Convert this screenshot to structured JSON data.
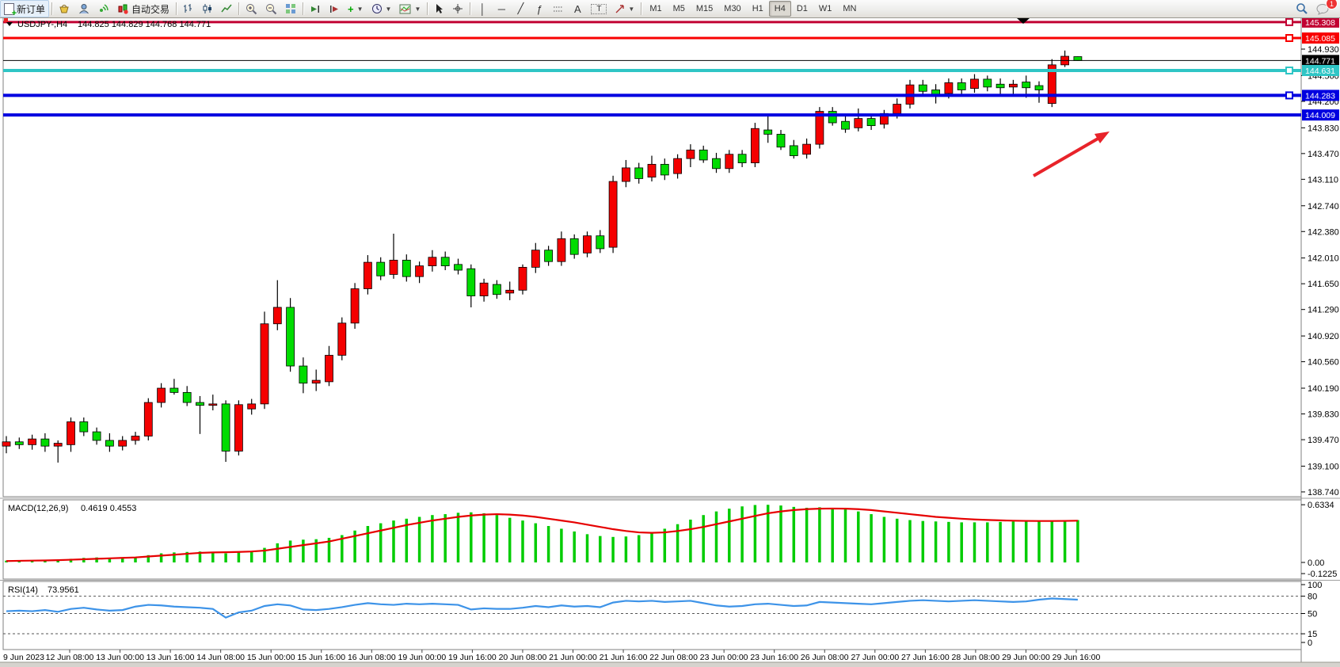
{
  "toolbar": {
    "new_order_label": "新订单",
    "autotrade_label": "自动交易",
    "timeframes": [
      "M1",
      "M5",
      "M15",
      "M30",
      "H1",
      "H4",
      "D1",
      "W1",
      "MN"
    ],
    "active_timeframe": "H4",
    "badge_count": "1"
  },
  "chart": {
    "symbol_title": "USDJPY-,H4",
    "ohlc_line": "144.825 144.829 144.768 144.771",
    "current_price": "144.771",
    "hlines": [
      {
        "price": 145.308,
        "label": "145.308",
        "color": "#c10132",
        "width": 3,
        "handle": true
      },
      {
        "price": 145.085,
        "label": "145.085",
        "color": "#f80000",
        "width": 3,
        "handle": true
      },
      {
        "price": 144.771,
        "label": "144.771",
        "color": "#000000",
        "width": 1,
        "handle": false
      },
      {
        "price": 144.631,
        "label": "144.631",
        "color": "#2fc5c5",
        "width": 4,
        "handle": true
      },
      {
        "price": 144.283,
        "label": "144.283",
        "color": "#0000e0",
        "width": 4,
        "handle": true
      },
      {
        "price": 144.009,
        "label": "144.009",
        "color": "#0000e0",
        "width": 4,
        "handle": false
      }
    ],
    "arrow_color": "#e8232a"
  },
  "macd": {
    "name": "MACD(12,26,9)",
    "values": "0.4619 0.4553",
    "scale": [
      {
        "text": "0.6334",
        "v": 0.6334
      },
      {
        "text": "0.00",
        "v": 0
      },
      {
        "text": "-0.1225",
        "v": -0.1225
      }
    ]
  },
  "rsi": {
    "name": "RSI(14)",
    "value": "73.9561",
    "scale": [
      {
        "text": "100",
        "v": 100
      },
      {
        "text": "80",
        "v": 80
      },
      {
        "text": "50",
        "v": 50
      },
      {
        "text": "15",
        "v": 15
      },
      {
        "text": "0",
        "v": 0
      }
    ],
    "levels": [
      80,
      50,
      15
    ]
  },
  "chart_data": {
    "type": "candlestick",
    "symbol": "USDJPY-",
    "period": "H4",
    "price_ticks": [
      "144.930",
      "144.560",
      "144.200",
      "143.830",
      "143.470",
      "143.110",
      "142.740",
      "142.380",
      "142.010",
      "141.650",
      "141.290",
      "140.920",
      "140.560",
      "140.190",
      "139.830",
      "139.470",
      "139.100",
      "138.740"
    ],
    "time_labels": [
      "9 Jun 2023",
      "12 Jun 08:00",
      "13 Jun 00:00",
      "13 Jun 16:00",
      "14 Jun 08:00",
      "15 Jun 00:00",
      "15 Jun 16:00",
      "16 Jun 08:00",
      "19 Jun 00:00",
      "19 Jun 16:00",
      "20 Jun 08:00",
      "21 Jun 00:00",
      "21 Jun 16:00",
      "22 Jun 08:00",
      "23 Jun 00:00",
      "23 Jun 16:00",
      "26 Jun 08:00",
      "27 Jun 00:00",
      "27 Jun 16:00",
      "28 Jun 08:00",
      "29 Jun 00:00",
      "29 Jun 16:00"
    ],
    "bull_color": "#f40000",
    "bear_color": "#00dc00",
    "ohlc": [
      [
        139.38,
        139.52,
        139.28,
        139.44
      ],
      [
        139.44,
        139.5,
        139.34,
        139.4
      ],
      [
        139.4,
        139.54,
        139.33,
        139.48
      ],
      [
        139.48,
        139.56,
        139.3,
        139.38
      ],
      [
        139.38,
        139.46,
        139.15,
        139.42
      ],
      [
        139.4,
        139.78,
        139.3,
        139.72
      ],
      [
        139.72,
        139.78,
        139.52,
        139.58
      ],
      [
        139.58,
        139.64,
        139.4,
        139.46
      ],
      [
        139.46,
        139.56,
        139.3,
        139.38
      ],
      [
        139.38,
        139.52,
        139.32,
        139.46
      ],
      [
        139.46,
        139.58,
        139.4,
        139.52
      ],
      [
        139.52,
        140.05,
        139.46,
        139.99
      ],
      [
        139.99,
        140.26,
        139.92,
        140.19
      ],
      [
        140.19,
        140.32,
        140.1,
        140.13
      ],
      [
        140.13,
        140.22,
        139.94,
        139.99
      ],
      [
        139.99,
        140.08,
        139.55,
        139.95
      ],
      [
        139.95,
        140.1,
        139.88,
        139.97
      ],
      [
        139.97,
        140.02,
        139.16,
        139.31
      ],
      [
        139.31,
        140.02,
        139.25,
        139.96
      ],
      [
        139.9,
        140.04,
        139.82,
        139.97
      ],
      [
        139.97,
        141.26,
        139.9,
        141.09
      ],
      [
        141.09,
        141.7,
        141.0,
        141.32
      ],
      [
        141.32,
        141.45,
        140.42,
        140.5
      ],
      [
        140.5,
        140.62,
        140.12,
        140.26
      ],
      [
        140.26,
        140.45,
        140.15,
        140.3
      ],
      [
        140.28,
        140.78,
        140.22,
        140.65
      ],
      [
        140.65,
        141.18,
        140.58,
        141.1
      ],
      [
        141.1,
        141.66,
        141.02,
        141.58
      ],
      [
        141.58,
        142.05,
        141.5,
        141.95
      ],
      [
        141.95,
        142.02,
        141.7,
        141.76
      ],
      [
        141.78,
        142.35,
        141.72,
        141.98
      ],
      [
        141.98,
        142.06,
        141.68,
        141.75
      ],
      [
        141.75,
        141.96,
        141.66,
        141.9
      ],
      [
        141.9,
        142.12,
        141.82,
        142.02
      ],
      [
        142.02,
        142.1,
        141.84,
        141.9
      ],
      [
        141.92,
        142.0,
        141.78,
        141.84
      ],
      [
        141.86,
        141.92,
        141.32,
        141.48
      ],
      [
        141.48,
        141.72,
        141.4,
        141.66
      ],
      [
        141.64,
        141.7,
        141.44,
        141.5
      ],
      [
        141.52,
        141.68,
        141.42,
        141.56
      ],
      [
        141.56,
        141.92,
        141.5,
        141.88
      ],
      [
        141.88,
        142.22,
        141.8,
        142.12
      ],
      [
        142.12,
        142.18,
        141.9,
        141.96
      ],
      [
        141.96,
        142.38,
        141.9,
        142.28
      ],
      [
        142.28,
        142.34,
        142.0,
        142.06
      ],
      [
        142.08,
        142.38,
        142.02,
        142.32
      ],
      [
        142.32,
        142.4,
        142.08,
        142.14
      ],
      [
        142.16,
        143.16,
        142.08,
        143.08
      ],
      [
        143.08,
        143.38,
        143.0,
        143.27
      ],
      [
        143.27,
        143.34,
        143.05,
        143.12
      ],
      [
        143.14,
        143.44,
        143.08,
        143.32
      ],
      [
        143.32,
        143.4,
        143.1,
        143.17
      ],
      [
        143.19,
        143.46,
        143.12,
        143.4
      ],
      [
        143.4,
        143.6,
        143.28,
        143.52
      ],
      [
        143.52,
        143.58,
        143.34,
        143.38
      ],
      [
        143.4,
        143.48,
        143.2,
        143.26
      ],
      [
        143.26,
        143.52,
        143.2,
        143.46
      ],
      [
        143.46,
        143.52,
        143.28,
        143.34
      ],
      [
        143.34,
        143.9,
        143.28,
        143.82
      ],
      [
        143.8,
        144.02,
        143.62,
        143.74
      ],
      [
        143.74,
        143.8,
        143.52,
        143.56
      ],
      [
        143.58,
        143.66,
        143.4,
        143.44
      ],
      [
        143.46,
        143.68,
        143.4,
        143.6
      ],
      [
        143.6,
        144.12,
        143.54,
        144.06
      ],
      [
        144.06,
        144.12,
        143.86,
        143.9
      ],
      [
        143.92,
        144.0,
        143.76,
        143.81
      ],
      [
        143.83,
        144.1,
        143.78,
        143.96
      ],
      [
        143.96,
        144.02,
        143.8,
        143.86
      ],
      [
        143.88,
        144.08,
        143.82,
        144.03
      ],
      [
        144.03,
        144.24,
        143.96,
        144.16
      ],
      [
        144.16,
        144.5,
        144.1,
        144.43
      ],
      [
        144.43,
        144.5,
        144.28,
        144.34
      ],
      [
        144.36,
        144.44,
        144.17,
        144.29
      ],
      [
        144.31,
        144.52,
        144.24,
        144.46
      ],
      [
        144.46,
        144.52,
        144.3,
        144.36
      ],
      [
        144.38,
        144.58,
        144.32,
        144.51
      ],
      [
        144.51,
        144.56,
        144.34,
        144.4
      ],
      [
        144.44,
        144.52,
        144.3,
        144.39
      ],
      [
        144.4,
        144.5,
        144.28,
        144.44
      ],
      [
        144.47,
        144.56,
        144.25,
        144.39
      ],
      [
        144.42,
        144.48,
        144.18,
        144.36
      ],
      [
        144.17,
        144.79,
        144.12,
        144.71
      ],
      [
        144.71,
        144.91,
        144.68,
        144.83
      ],
      [
        144.825,
        144.829,
        144.768,
        144.771
      ]
    ],
    "macd_histogram": [
      0.02,
      0.02,
      0.025,
      0.03,
      0.025,
      0.04,
      0.05,
      0.055,
      0.05,
      0.045,
      0.06,
      0.08,
      0.1,
      0.11,
      0.115,
      0.12,
      0.115,
      0.1,
      0.11,
      0.12,
      0.16,
      0.21,
      0.24,
      0.25,
      0.255,
      0.27,
      0.3,
      0.35,
      0.4,
      0.43,
      0.46,
      0.48,
      0.5,
      0.52,
      0.53,
      0.545,
      0.55,
      0.54,
      0.52,
      0.49,
      0.46,
      0.43,
      0.4,
      0.37,
      0.34,
      0.31,
      0.29,
      0.28,
      0.285,
      0.3,
      0.33,
      0.37,
      0.42,
      0.47,
      0.52,
      0.56,
      0.59,
      0.615,
      0.63,
      0.633,
      0.625,
      0.61,
      0.6,
      0.605,
      0.6,
      0.585,
      0.56,
      0.53,
      0.5,
      0.48,
      0.465,
      0.455,
      0.45,
      0.445,
      0.44,
      0.44,
      0.44,
      0.445,
      0.45,
      0.45,
      0.455,
      0.46,
      0.462,
      0.465
    ],
    "macd_signal": [
      0.015,
      0.018,
      0.02,
      0.022,
      0.025,
      0.03,
      0.035,
      0.04,
      0.045,
      0.05,
      0.055,
      0.065,
      0.075,
      0.085,
      0.095,
      0.105,
      0.11,
      0.112,
      0.115,
      0.12,
      0.13,
      0.15,
      0.17,
      0.19,
      0.21,
      0.23,
      0.26,
      0.29,
      0.32,
      0.35,
      0.38,
      0.41,
      0.435,
      0.46,
      0.48,
      0.5,
      0.515,
      0.525,
      0.53,
      0.525,
      0.515,
      0.5,
      0.48,
      0.46,
      0.44,
      0.415,
      0.39,
      0.365,
      0.345,
      0.33,
      0.325,
      0.33,
      0.345,
      0.365,
      0.39,
      0.42,
      0.45,
      0.48,
      0.51,
      0.54,
      0.56,
      0.575,
      0.585,
      0.59,
      0.592,
      0.59,
      0.585,
      0.575,
      0.56,
      0.545,
      0.53,
      0.515,
      0.5,
      0.49,
      0.48,
      0.472,
      0.466,
      0.462,
      0.458,
      0.456,
      0.455,
      0.455,
      0.456,
      0.458
    ],
    "rsi_values": [
      54,
      55,
      54,
      56,
      53,
      58,
      60,
      57,
      55,
      56,
      62,
      65,
      64,
      62,
      61,
      60,
      58,
      43,
      52,
      55,
      63,
      66,
      64,
      57,
      56,
      58,
      61,
      65,
      68,
      66,
      65,
      67,
      66,
      67,
      66,
      65,
      57,
      59,
      58,
      58,
      60,
      63,
      61,
      64,
      62,
      63,
      61,
      69,
      72,
      71,
      72,
      70,
      71,
      72,
      68,
      64,
      62,
      63,
      66,
      67,
      65,
      63,
      64,
      70,
      69,
      68,
      67,
      66,
      68,
      70,
      72,
      73,
      72,
      71,
      72,
      73,
      72,
      71,
      70,
      71,
      74,
      76,
      75,
      74
    ]
  }
}
